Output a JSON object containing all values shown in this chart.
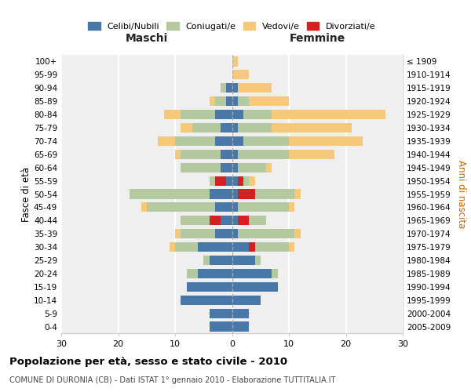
{
  "age_groups": [
    "0-4",
    "5-9",
    "10-14",
    "15-19",
    "20-24",
    "25-29",
    "30-34",
    "35-39",
    "40-44",
    "45-49",
    "50-54",
    "55-59",
    "60-64",
    "65-69",
    "70-74",
    "75-79",
    "80-84",
    "85-89",
    "90-94",
    "95-99",
    "100+"
  ],
  "birth_years": [
    "2005-2009",
    "2000-2004",
    "1995-1999",
    "1990-1994",
    "1985-1989",
    "1980-1984",
    "1975-1979",
    "1970-1974",
    "1965-1969",
    "1960-1964",
    "1955-1959",
    "1950-1954",
    "1945-1949",
    "1940-1944",
    "1935-1939",
    "1930-1934",
    "1925-1929",
    "1920-1924",
    "1915-1919",
    "1910-1914",
    "≤ 1909"
  ],
  "colors": {
    "celibe": "#4878a8",
    "coniugato": "#b5c9a0",
    "vedovo": "#f5c87a",
    "divorziato": "#d42020"
  },
  "maschi": {
    "celibe": [
      4,
      4,
      9,
      8,
      6,
      4,
      6,
      3,
      2,
      3,
      4,
      1,
      2,
      2,
      3,
      2,
      3,
      1,
      1,
      0,
      0
    ],
    "coniugato": [
      0,
      0,
      0,
      0,
      2,
      1,
      4,
      6,
      7,
      12,
      14,
      3,
      7,
      7,
      7,
      5,
      6,
      2,
      1,
      0,
      0
    ],
    "vedovo": [
      0,
      0,
      0,
      0,
      0,
      0,
      1,
      1,
      0,
      1,
      0,
      0,
      0,
      1,
      3,
      2,
      3,
      1,
      0,
      0,
      0
    ],
    "divorziato": [
      0,
      0,
      0,
      0,
      0,
      0,
      0,
      0,
      2,
      0,
      0,
      2,
      0,
      0,
      0,
      0,
      0,
      0,
      0,
      0,
      0
    ]
  },
  "femmine": {
    "nubile": [
      3,
      3,
      5,
      8,
      7,
      4,
      3,
      1,
      1,
      1,
      1,
      1,
      1,
      1,
      2,
      1,
      2,
      1,
      1,
      0,
      0
    ],
    "coniugata": [
      0,
      0,
      0,
      0,
      1,
      1,
      7,
      10,
      5,
      9,
      10,
      2,
      5,
      9,
      8,
      6,
      5,
      2,
      0,
      0,
      0
    ],
    "vedova": [
      0,
      0,
      0,
      0,
      0,
      0,
      1,
      1,
      0,
      1,
      1,
      1,
      1,
      8,
      13,
      14,
      20,
      7,
      6,
      3,
      1
    ],
    "divorziata": [
      0,
      0,
      0,
      0,
      0,
      0,
      1,
      0,
      2,
      0,
      3,
      1,
      0,
      0,
      0,
      0,
      0,
      0,
      0,
      0,
      0
    ]
  },
  "xlim": 30,
  "title": "Popolazione per età, sesso e stato civile - 2010",
  "subtitle": "COMUNE DI DURONIA (CB) - Dati ISTAT 1° gennaio 2010 - Elaborazione TUTTITALIA.IT",
  "ylabel_left": "Fasce di età",
  "ylabel_right": "Anni di nascita",
  "xlabel_maschi": "Maschi",
  "xlabel_femmine": "Femmine",
  "bg_color": "#efefef",
  "grid_color": "white"
}
